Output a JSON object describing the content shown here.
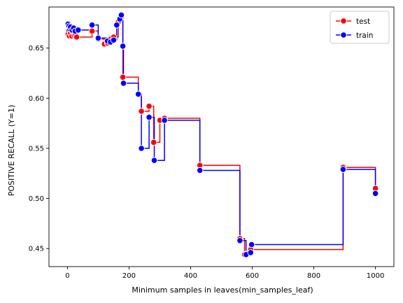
{
  "chart_data": {
    "type": "line",
    "title": "",
    "xlabel": "Minimum samples in leaves(min_samples_leaf)",
    "ylabel": "POSITIVE RECALL (Y=1)",
    "xlim": [
      -60,
      1060
    ],
    "ylim": [
      0.432,
      0.691
    ],
    "xticks": [
      0,
      200,
      400,
      600,
      800,
      1000
    ],
    "yticks": [
      0.45,
      0.5,
      0.55,
      0.6,
      0.65
    ],
    "ytick_labels": [
      "0.45",
      "0.50",
      "0.55",
      "0.60",
      "0.65"
    ],
    "grid": false,
    "legend_position": "top-right",
    "series": [
      {
        "name": "test",
        "color": "#ff0000",
        "points": [
          [
            2,
            0.664
          ],
          [
            4,
            0.668
          ],
          [
            6,
            0.662
          ],
          [
            8,
            0.67
          ],
          [
            10,
            0.665
          ],
          [
            14,
            0.662
          ],
          [
            18,
            0.666
          ],
          [
            22,
            0.663
          ],
          [
            26,
            0.664
          ],
          [
            30,
            0.661
          ],
          [
            80,
            0.667
          ],
          [
            100,
            0.659
          ],
          [
            120,
            0.654
          ],
          [
            130,
            0.655
          ],
          [
            140,
            0.659
          ],
          [
            150,
            0.661
          ],
          [
            165,
            0.676
          ],
          [
            175,
            0.681
          ],
          [
            180,
            0.621
          ],
          [
            230,
            0.604
          ],
          [
            240,
            0.587
          ],
          [
            265,
            0.592
          ],
          [
            280,
            0.556
          ],
          [
            300,
            0.578
          ],
          [
            315,
            0.58
          ],
          [
            430,
            0.533
          ],
          [
            560,
            0.46
          ],
          [
            575,
            0.444
          ],
          [
            585,
            0.445
          ],
          [
            595,
            0.449
          ],
          [
            895,
            0.531
          ],
          [
            1000,
            0.51
          ]
        ]
      },
      {
        "name": "train",
        "color": "#0000ff",
        "points": [
          [
            2,
            0.674
          ],
          [
            5,
            0.672
          ],
          [
            8,
            0.669
          ],
          [
            10,
            0.671
          ],
          [
            15,
            0.668
          ],
          [
            20,
            0.67
          ],
          [
            25,
            0.667
          ],
          [
            35,
            0.668
          ],
          [
            80,
            0.673
          ],
          [
            100,
            0.66
          ],
          [
            130,
            0.657
          ],
          [
            140,
            0.656
          ],
          [
            150,
            0.658
          ],
          [
            160,
            0.673
          ],
          [
            170,
            0.679
          ],
          [
            175,
            0.683
          ],
          [
            180,
            0.652
          ],
          [
            182,
            0.615
          ],
          [
            230,
            0.604
          ],
          [
            240,
            0.55
          ],
          [
            265,
            0.581
          ],
          [
            282,
            0.538
          ],
          [
            315,
            0.578
          ],
          [
            430,
            0.528
          ],
          [
            560,
            0.458
          ],
          [
            580,
            0.444
          ],
          [
            595,
            0.446
          ],
          [
            598,
            0.454
          ],
          [
            895,
            0.529
          ],
          [
            1000,
            0.505
          ]
        ]
      }
    ]
  }
}
